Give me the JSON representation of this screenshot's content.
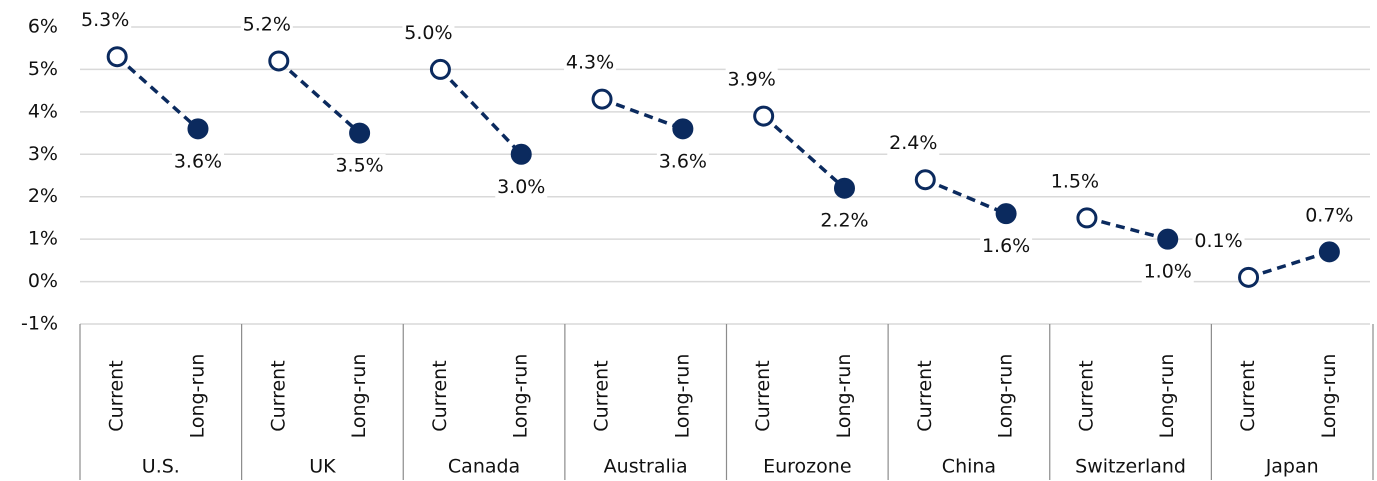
{
  "chart_data": {
    "type": "dumbbell",
    "categories": [
      "U.S.",
      "UK",
      "Canada",
      "Australia",
      "Eurozone",
      "China",
      "Switzerland",
      "Japan"
    ],
    "series": [
      {
        "name": "Current",
        "color": "#0b2a5e",
        "marker_fill": "#ffffff",
        "values": [
          5.3,
          5.2,
          5.0,
          4.3,
          3.9,
          2.4,
          1.5,
          0.1
        ],
        "value_labels": [
          "5.3%",
          "5.2%",
          "5.0%",
          "4.3%",
          "3.9%",
          "2.4%",
          "1.5%",
          "0.1%"
        ]
      },
      {
        "name": "Long-run",
        "color": "#0b2a5e",
        "marker_fill": "#0b2a5e",
        "values": [
          3.6,
          3.5,
          3.0,
          3.6,
          2.2,
          1.6,
          1.0,
          0.7
        ],
        "value_labels": [
          "3.6%",
          "3.5%",
          "3.0%",
          "3.6%",
          "2.2%",
          "1.6%",
          "1.0%",
          "0.7%"
        ]
      }
    ],
    "ylim": [
      -1,
      6
    ],
    "yticks": [
      {
        "value": -1,
        "label": "-1%"
      },
      {
        "value": 0,
        "label": "0%"
      },
      {
        "value": 1,
        "label": "1%"
      },
      {
        "value": 2,
        "label": "2%"
      },
      {
        "value": 3,
        "label": "3%"
      },
      {
        "value": 4,
        "label": "4%"
      },
      {
        "value": 5,
        "label": "5%"
      },
      {
        "value": 6,
        "label": "6%"
      }
    ],
    "grid": true,
    "line_style": "dashed"
  }
}
